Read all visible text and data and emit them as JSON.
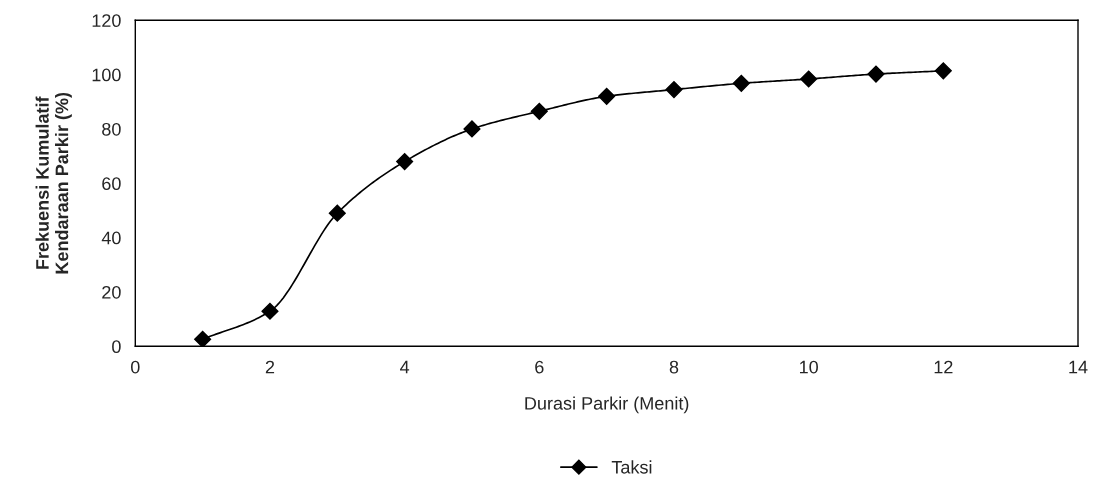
{
  "chart_data": {
    "type": "line",
    "xlabel": "Durasi Parkir (Menit)",
    "ylabel": "Frekuensi Kumulatif\nKendaraan Parkir (%)",
    "x": [
      1,
      2,
      3,
      4,
      5,
      6,
      7,
      8,
      9,
      10,
      11,
      12
    ],
    "series": [
      {
        "name": "Taksi",
        "color": "#000000",
        "values": [
          2.6,
          12.9,
          49,
          68,
          80,
          86.5,
          92,
          94.5,
          96.8,
          98.4,
          100.2,
          101.4
        ]
      }
    ],
    "xlim": [
      0,
      14
    ],
    "xticks": [
      0,
      2,
      4,
      6,
      8,
      10,
      12,
      14
    ],
    "ylim": [
      0,
      120
    ],
    "yticks": [
      0,
      20,
      40,
      60,
      80,
      100,
      120
    ],
    "grid": false,
    "legend": "bottom",
    "marker": "diamond",
    "line_style": "solid"
  }
}
